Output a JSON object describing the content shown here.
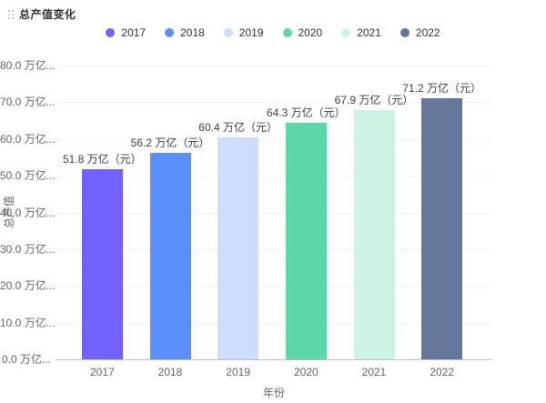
{
  "card": {
    "title": "总产值变化"
  },
  "legend": {
    "items": [
      {
        "label": "2017",
        "color": "#7262FD"
      },
      {
        "label": "2018",
        "color": "#5B8FF9"
      },
      {
        "label": "2019",
        "color": "#CDDDFD"
      },
      {
        "label": "2020",
        "color": "#5AD8A6"
      },
      {
        "label": "2021",
        "color": "#CDF3E4"
      },
      {
        "label": "2022",
        "color": "#65789B"
      }
    ]
  },
  "chart_data": {
    "type": "bar",
    "title": "总产值变化",
    "categories": [
      "2017",
      "2018",
      "2019",
      "2020",
      "2021",
      "2022"
    ],
    "values": [
      51.8,
      56.2,
      60.4,
      64.3,
      67.9,
      71.2
    ],
    "bar_labels": [
      "51.8 万亿（元）",
      "56.2 万亿（元）",
      "60.4 万亿（元）",
      "64.3 万亿（元）",
      "67.9 万亿（元）",
      "71.2 万亿（元）"
    ],
    "colors": [
      "#7262FD",
      "#5B8FF9",
      "#CDDDFD",
      "#5AD8A6",
      "#CDF3E4",
      "#65789B"
    ],
    "xlabel": "年份",
    "ylabel": "总产值",
    "ylim": [
      0,
      80
    ],
    "ytick_step": 10,
    "ytick_labels": [
      "0.0 万亿...",
      "10.0 万亿...",
      "20.0 万亿...",
      "30.0 万亿...",
      "40.0 万亿...",
      "50.0 万亿...",
      "60.0 万亿...",
      "70.0 万亿...",
      "80.0 万亿..."
    ],
    "grid": true,
    "legend_position": "top"
  }
}
